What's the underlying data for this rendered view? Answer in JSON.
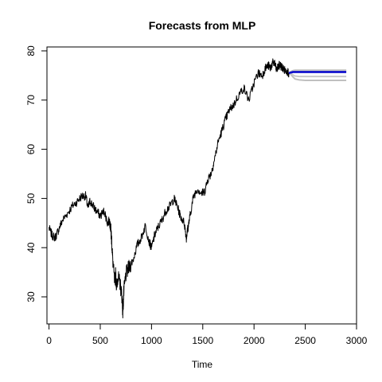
{
  "chart_data": {
    "type": "line",
    "title": "Forecasts from MLP",
    "xlabel": "Time",
    "ylabel": "",
    "xlim": [
      -20,
      3000
    ],
    "ylim": [
      24.5,
      80.8
    ],
    "x_ticks": [
      0,
      500,
      1000,
      1500,
      2000,
      2500,
      3000
    ],
    "y_ticks": [
      30,
      40,
      50,
      60,
      70,
      80
    ],
    "grid": false,
    "legend": "none",
    "series": [
      {
        "role": "observed",
        "color": "#000000",
        "x": [
          0,
          30,
          60,
          90,
          130,
          180,
          230,
          280,
          320,
          360,
          380,
          400,
          430,
          460,
          500,
          540,
          570,
          590,
          600,
          610,
          620,
          640,
          650,
          660,
          670,
          690,
          710,
          720,
          730,
          750,
          780,
          820,
          860,
          900,
          940,
          980,
          1000,
          1030,
          1060,
          1100,
          1140,
          1180,
          1220,
          1250,
          1280,
          1320,
          1340,
          1350,
          1360,
          1380,
          1410,
          1450,
          1490,
          1520,
          1550,
          1580,
          1610,
          1650,
          1690,
          1720,
          1760,
          1800,
          1850,
          1900,
          1950,
          2000,
          2040,
          2080,
          2110,
          2140,
          2160,
          2180,
          2200,
          2220,
          2240,
          2260,
          2280,
          2300,
          2320,
          2340
        ],
        "y": [
          44,
          42.5,
          42,
          43.5,
          45.5,
          47,
          48.5,
          49.5,
          50.5,
          50.5,
          48,
          49.5,
          48.5,
          47.5,
          46.5,
          47.5,
          45,
          45.5,
          44,
          42,
          38,
          33,
          34.5,
          32,
          34,
          33,
          30.5,
          27,
          31,
          34.5,
          36,
          37.5,
          40.5,
          42,
          44.5,
          41,
          40,
          42.5,
          44,
          45.5,
          47.5,
          48.5,
          50,
          48.5,
          46.5,
          45,
          42,
          43.5,
          44.5,
          47,
          50.5,
          52,
          51,
          51.5,
          54,
          55,
          57.5,
          61.5,
          64,
          66,
          68,
          69,
          71,
          72.5,
          70,
          73.5,
          75.5,
          75,
          76.5,
          77,
          76.5,
          77.5,
          77.5,
          76,
          77,
          77,
          76.5,
          76,
          76,
          75.5
        ]
      },
      {
        "role": "forecast",
        "color": "#0000cc",
        "x": [
          2340,
          2360,
          2380,
          2400,
          2420,
          2450,
          2500,
          2600,
          2700,
          2800,
          2900
        ],
        "y": [
          75.5,
          75.6,
          75.7,
          75.7,
          75.7,
          75.7,
          75.7,
          75.7,
          75.7,
          75.7,
          75.7
        ]
      }
    ],
    "fan_paths": [
      {
        "color": "#c0c0c0",
        "x": [
          2340,
          2360,
          2380,
          2400,
          2440,
          2500,
          2600,
          2700,
          2800,
          2900
        ],
        "y": [
          75.5,
          75.2,
          74.7,
          74.3,
          74.1,
          74.0,
          74.0,
          74.0,
          74.0,
          74.0
        ]
      },
      {
        "color": "#c8c8c8",
        "x": [
          2340,
          2360,
          2380,
          2400,
          2440,
          2500,
          2600,
          2700,
          2800,
          2900
        ],
        "y": [
          75.5,
          75.4,
          75.1,
          74.9,
          74.8,
          74.8,
          74.8,
          74.8,
          74.8,
          74.8
        ]
      },
      {
        "color": "#bdbdbd",
        "x": [
          2340,
          2360,
          2380,
          2400,
          2440,
          2500,
          2600,
          2700,
          2800,
          2900
        ],
        "y": [
          75.5,
          75.6,
          75.8,
          75.9,
          75.9,
          75.9,
          75.9,
          75.9,
          75.9,
          75.9
        ]
      },
      {
        "color": "#c4c4c4",
        "x": [
          2340,
          2360,
          2380,
          2400,
          2440,
          2500,
          2600,
          2700,
          2800,
          2900
        ],
        "y": [
          75.5,
          75.8,
          76.0,
          76.1,
          76.1,
          76.1,
          76.1,
          76.1,
          76.1,
          76.1
        ]
      }
    ]
  }
}
